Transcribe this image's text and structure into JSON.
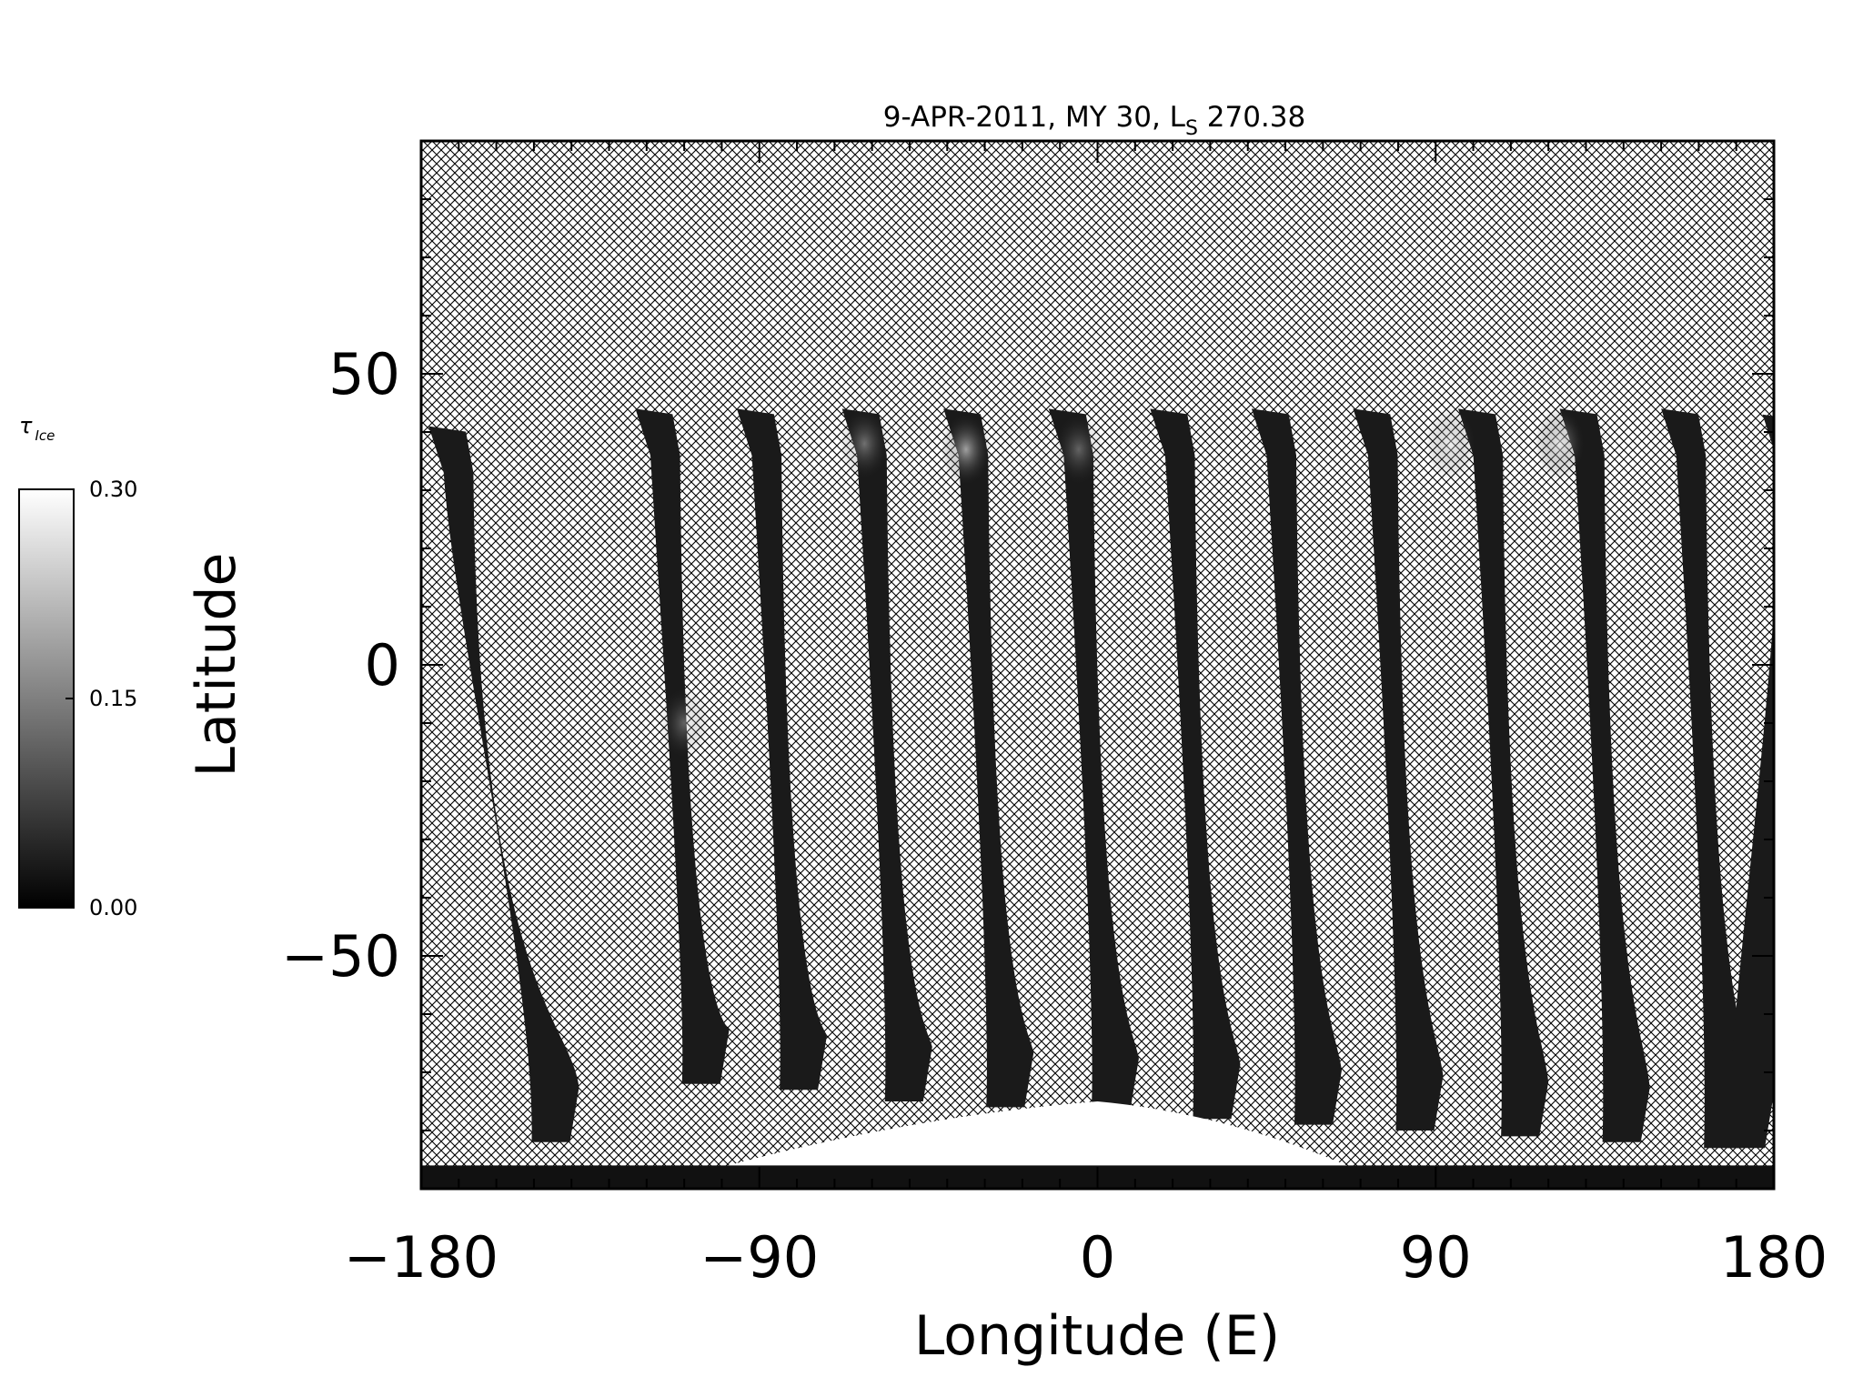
{
  "chart_data": {
    "type": "heatmap",
    "title": "9-APR-2011, MY 30,  L",
    "title_subscript": "S",
    "title_suffix": " 270.38",
    "xlabel": "Longitude (E)",
    "ylabel": "Latitude",
    "xlim": [
      -180,
      180
    ],
    "ylim": [
      -90,
      90
    ],
    "x_ticks": [
      -180,
      -90,
      0,
      90,
      180
    ],
    "x_tick_labels": [
      "−180",
      "−90",
      "0",
      "90",
      "180"
    ],
    "y_ticks": [
      -50,
      0,
      50
    ],
    "y_tick_labels": [
      "−50",
      "0",
      "50"
    ],
    "no_data": "hatched",
    "colorbar": {
      "label": "τ",
      "label_subscript": "Ice",
      "range": [
        0.0,
        0.3
      ],
      "ticks": [
        0.0,
        0.15,
        0.3
      ],
      "tick_labels": [
        "0.00",
        "0.15",
        "0.30"
      ],
      "colormap": "grayscale"
    },
    "swaths": [
      {
        "top_lon": -178,
        "top_lat": 41,
        "bottom_lon": -138,
        "bottom_lat": -82
      },
      {
        "top_lon": -123,
        "top_lat": 44,
        "bottom_lon": -98,
        "bottom_lat": -72
      },
      {
        "top_lon": -96,
        "top_lat": 44,
        "bottom_lon": -72,
        "bottom_lat": -73
      },
      {
        "top_lon": -68,
        "top_lat": 44,
        "bottom_lon": -44,
        "bottom_lat": -75
      },
      {
        "top_lon": -41,
        "top_lat": 44,
        "bottom_lon": -17,
        "bottom_lat": -76
      },
      {
        "top_lon": -13,
        "top_lat": 44,
        "bottom_lon": 11,
        "bottom_lat": -77
      },
      {
        "top_lon": 14,
        "top_lat": 44,
        "bottom_lon": 38,
        "bottom_lat": -78
      },
      {
        "top_lon": 41,
        "top_lat": 44,
        "bottom_lon": 65,
        "bottom_lat": -79
      },
      {
        "top_lon": 68,
        "top_lat": 44,
        "bottom_lon": 92,
        "bottom_lat": -80
      },
      {
        "top_lon": 96,
        "top_lat": 44,
        "bottom_lon": 120,
        "bottom_lat": -81
      },
      {
        "top_lon": 123,
        "top_lat": 44,
        "bottom_lon": 147,
        "bottom_lat": -82
      },
      {
        "top_lon": 150,
        "top_lat": 44,
        "bottom_lon": 174,
        "bottom_lat": -83
      },
      {
        "top_lon": 177,
        "top_lat": 43,
        "bottom_lon": 180,
        "bottom_lat": -83
      }
    ],
    "bright_spots": [
      {
        "lon": -35,
        "lat": 37,
        "tau": 0.22
      },
      {
        "lon": 123,
        "lat": 38,
        "tau": 0.2
      },
      {
        "lon": 94,
        "lat": 38,
        "tau": 0.15
      },
      {
        "lon": -62,
        "lat": 38,
        "tau": 0.14
      },
      {
        "lon": -5,
        "lat": 37,
        "tau": 0.12
      },
      {
        "lon": -110,
        "lat": -10,
        "tau": 0.12
      }
    ],
    "polar_cap": {
      "center_lon": 0,
      "lat_min": -90,
      "lat_max": -75,
      "lon_min": -120,
      "lon_max": 80,
      "tau": 0.3
    }
  }
}
